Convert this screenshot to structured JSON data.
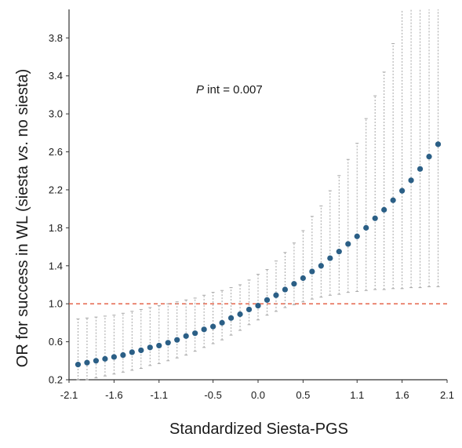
{
  "chart_data": {
    "type": "scatter",
    "title": "",
    "xlabel": "Standardized Siesta-PGS",
    "ylabel_parts": [
      "OR for success in WL (siesta ",
      "vs",
      ". no siesta)"
    ],
    "annotation": {
      "italic": "P",
      "text": " int = 0.007"
    },
    "xlim": [
      -2.1,
      2.1
    ],
    "ylim": [
      0.2,
      4.1
    ],
    "x_ticks": [
      -2.1,
      -1.6,
      -1.1,
      -0.5,
      0.0,
      0.5,
      1.1,
      1.6,
      2.1
    ],
    "x_tick_labels": [
      "-2.1",
      "-1.6",
      "-1.1",
      "-0.5",
      "0.0",
      "0.5",
      "1.1",
      "1.6",
      "2.1"
    ],
    "y_ticks": [
      0.2,
      0.6,
      1.0,
      1.4,
      1.8,
      2.2,
      2.6,
      3.0,
      3.4,
      3.8
    ],
    "y_tick_labels": [
      "0.2",
      "0.6",
      "1.0",
      "1.4",
      "1.8",
      "2.2",
      "2.6",
      "3.0",
      "3.4",
      "3.8"
    ],
    "reference_line": {
      "y": 1.0,
      "color": "#e2573b",
      "style": "dashed"
    },
    "point_color": "#2b5f86",
    "errorbar_color": "#a6a6a6",
    "grid": false,
    "series": [
      {
        "x": [
          -2.0,
          -1.9,
          -1.8,
          -1.7,
          -1.6,
          -1.5,
          -1.4,
          -1.3,
          -1.2,
          -1.1,
          -1.0,
          -0.9,
          -0.8,
          -0.7,
          -0.6,
          -0.5,
          -0.4,
          -0.3,
          -0.2,
          -0.1,
          0.0,
          0.1,
          0.2,
          0.3,
          0.4,
          0.5,
          0.6,
          0.7,
          0.8,
          0.9,
          1.0,
          1.1,
          1.2,
          1.3,
          1.4,
          1.5,
          1.6,
          1.7,
          1.8,
          1.9,
          2.0
        ],
        "y": [
          0.36,
          0.38,
          0.4,
          0.42,
          0.44,
          0.46,
          0.49,
          0.51,
          0.54,
          0.56,
          0.59,
          0.62,
          0.66,
          0.69,
          0.73,
          0.76,
          0.8,
          0.85,
          0.89,
          0.94,
          0.98,
          1.04,
          1.09,
          1.15,
          1.21,
          1.27,
          1.34,
          1.4,
          1.48,
          1.55,
          1.63,
          1.71,
          1.8,
          1.9,
          1.99,
          2.09,
          2.19,
          2.3,
          2.42,
          2.55,
          2.68
        ],
        "ci_low": [
          0.19,
          0.2,
          0.22,
          0.24,
          0.26,
          0.28,
          0.3,
          0.32,
          0.35,
          0.37,
          0.4,
          0.43,
          0.46,
          0.5,
          0.54,
          0.58,
          0.62,
          0.67,
          0.72,
          0.78,
          0.83,
          0.88,
          0.92,
          0.96,
          0.99,
          1.02,
          1.05,
          1.07,
          1.09,
          1.1,
          1.12,
          1.13,
          1.14,
          1.15,
          1.15,
          1.16,
          1.16,
          1.17,
          1.17,
          1.18,
          1.18
        ],
        "ci_high": [
          0.84,
          0.85,
          0.86,
          0.87,
          0.88,
          0.9,
          0.92,
          0.94,
          0.96,
          0.98,
          1.0,
          1.02,
          1.04,
          1.06,
          1.09,
          1.12,
          1.14,
          1.17,
          1.2,
          1.25,
          1.31,
          1.36,
          1.45,
          1.54,
          1.64,
          1.77,
          1.92,
          2.03,
          2.19,
          2.35,
          2.52,
          2.69,
          2.95,
          3.19,
          3.44,
          3.74,
          4.1,
          4.1,
          4.1,
          4.1,
          4.1
        ]
      }
    ]
  }
}
